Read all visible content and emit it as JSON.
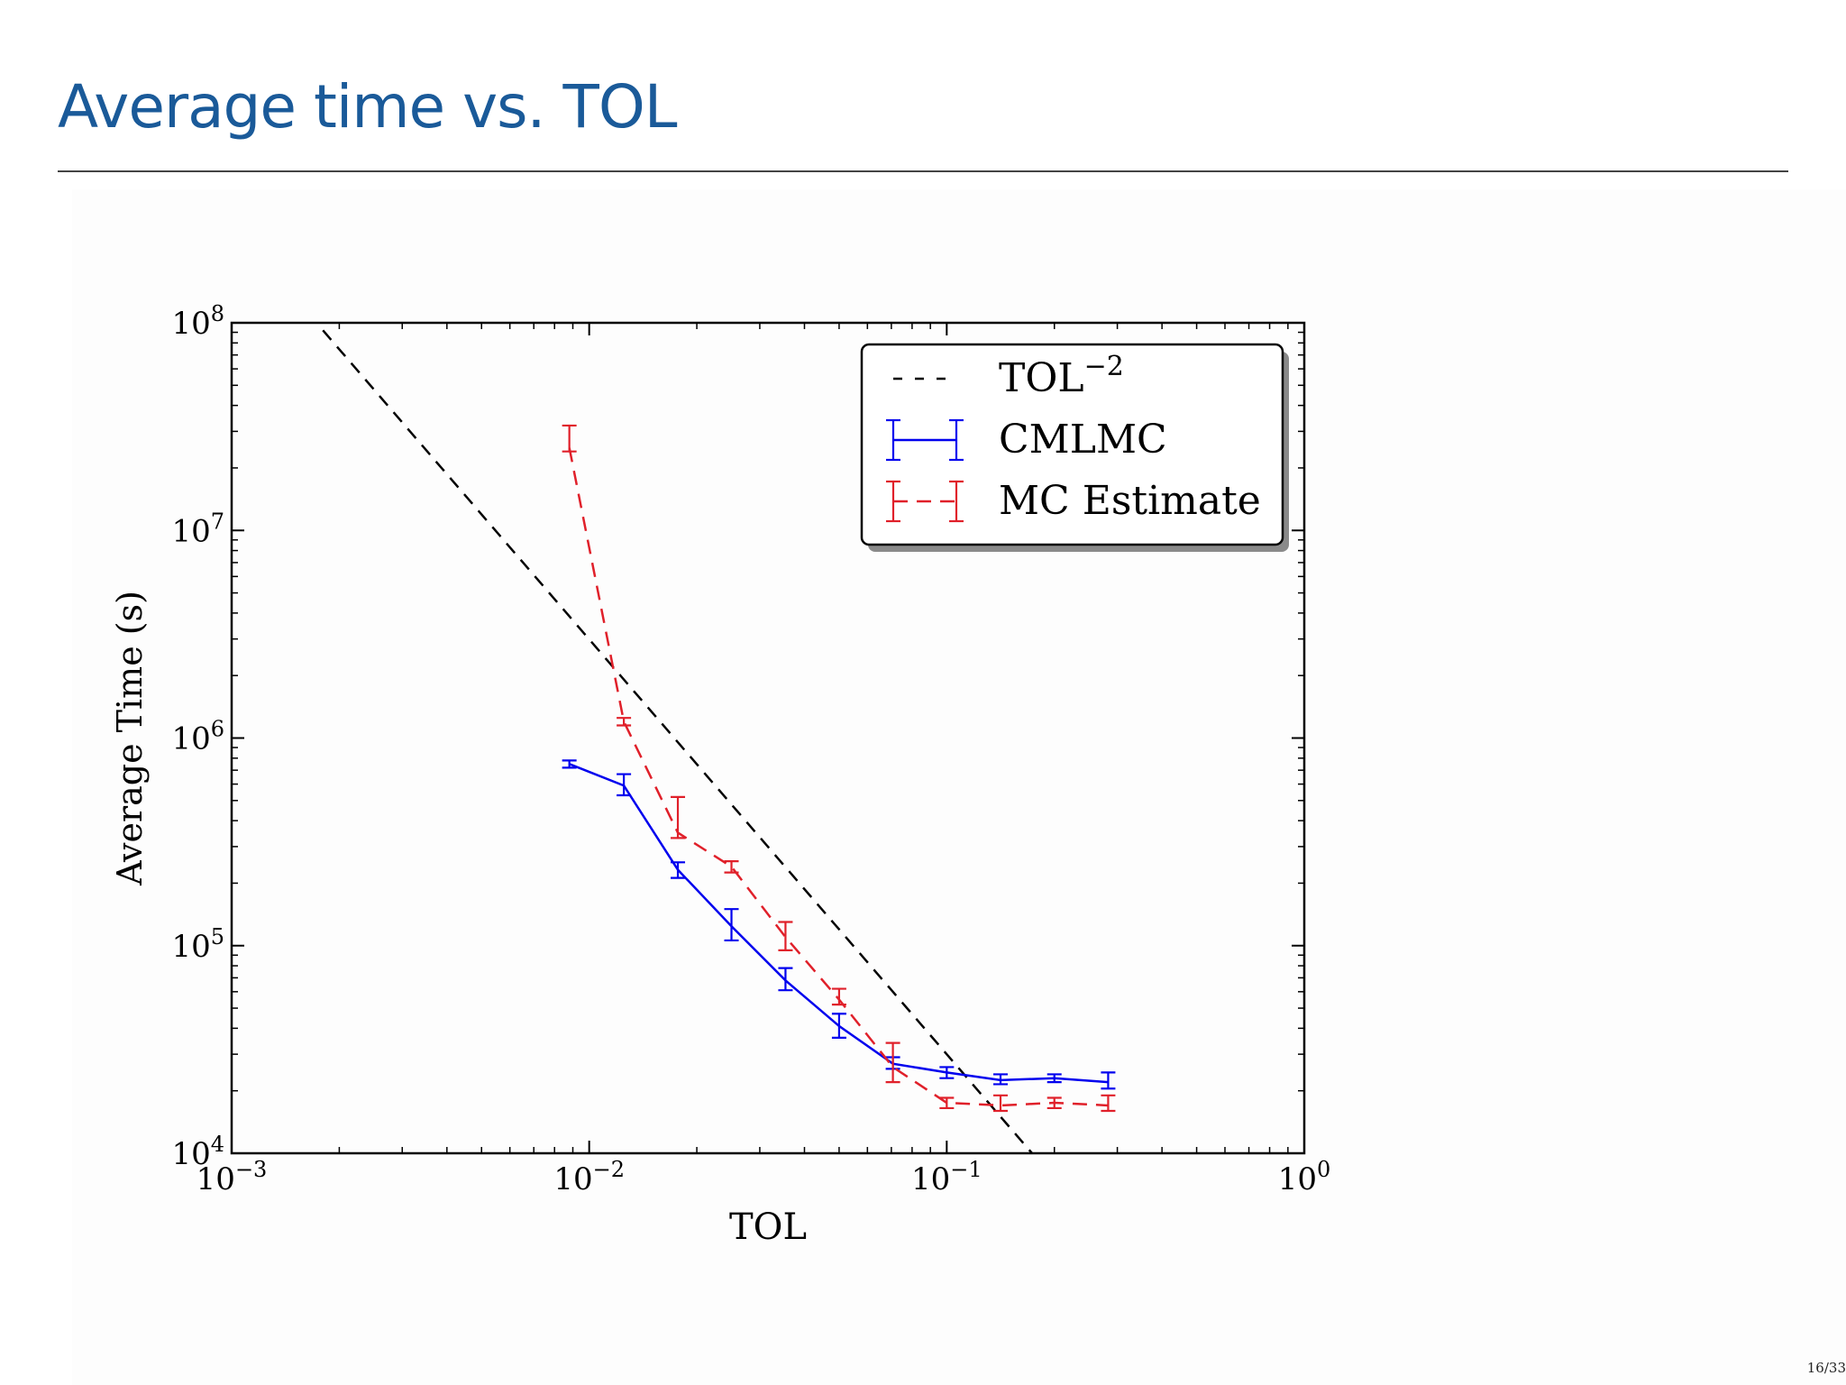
{
  "slide": {
    "title": "Average time vs. TOL",
    "page_number": "16/33"
  },
  "colors": {
    "title": "#1a5a99",
    "cmlmc": "#0000ee",
    "mc": "#e0202a",
    "reference": "#000000"
  },
  "chart_data": {
    "type": "line",
    "xscale": "log",
    "yscale": "log",
    "xlim": [
      0.001,
      1
    ],
    "ylim": [
      10000,
      100000000
    ],
    "x_ticks": [
      {
        "value": 0.001,
        "base": "10",
        "exp": "−3"
      },
      {
        "value": 0.01,
        "base": "10",
        "exp": "−2"
      },
      {
        "value": 0.1,
        "base": "10",
        "exp": "−1"
      },
      {
        "value": 1,
        "base": "10",
        "exp": "0"
      }
    ],
    "y_ticks": [
      {
        "value": 10000,
        "base": "10",
        "exp": "4"
      },
      {
        "value": 100000,
        "base": "10",
        "exp": "5"
      },
      {
        "value": 1000000,
        "base": "10",
        "exp": "6"
      },
      {
        "value": 10000000,
        "base": "10",
        "exp": "7"
      },
      {
        "value": 100000000,
        "base": "10",
        "exp": "8"
      }
    ],
    "xlabel": "TOL",
    "ylabel": "Average Time (s)",
    "legend_position": "top-right",
    "series": [
      {
        "name": "TOL−2",
        "label_base": "TOL",
        "label_exp": "−2",
        "style": "dashed",
        "points": [
          {
            "x": 0.0018,
            "y": 92000000
          },
          {
            "x": 0.175,
            "y": 9800
          }
        ]
      },
      {
        "name": "CMLMC",
        "style": "solid",
        "points": [
          {
            "x": 0.0088,
            "y": 750000,
            "lo": 720000,
            "hi": 780000
          },
          {
            "x": 0.0125,
            "y": 590000,
            "lo": 530000,
            "hi": 670000
          },
          {
            "x": 0.0177,
            "y": 232000,
            "lo": 212000,
            "hi": 252000
          },
          {
            "x": 0.025,
            "y": 124000,
            "lo": 106000,
            "hi": 150000
          },
          {
            "x": 0.0354,
            "y": 68000,
            "lo": 61000,
            "hi": 78000
          },
          {
            "x": 0.05,
            "y": 41000,
            "lo": 36000,
            "hi": 47000
          },
          {
            "x": 0.0707,
            "y": 27000,
            "lo": 25500,
            "hi": 29000
          },
          {
            "x": 0.1,
            "y": 24500,
            "lo": 23000,
            "hi": 26000
          },
          {
            "x": 0.1414,
            "y": 22500,
            "lo": 21500,
            "hi": 24000
          },
          {
            "x": 0.2,
            "y": 23000,
            "lo": 22000,
            "hi": 24000
          },
          {
            "x": 0.2828,
            "y": 22000,
            "lo": 20500,
            "hi": 24500
          }
        ]
      },
      {
        "name": "MC Estimate",
        "style": "dashed",
        "points": [
          {
            "x": 0.0088,
            "y": 25000000,
            "lo": 24000000,
            "hi": 32000000
          },
          {
            "x": 0.0125,
            "y": 1200000,
            "lo": 1150000,
            "hi": 1250000
          },
          {
            "x": 0.0177,
            "y": 350000,
            "lo": 330000,
            "hi": 520000
          },
          {
            "x": 0.025,
            "y": 240000,
            "lo": 225000,
            "hi": 255000
          },
          {
            "x": 0.0354,
            "y": 110000,
            "lo": 95000,
            "hi": 130000
          },
          {
            "x": 0.05,
            "y": 55000,
            "lo": 52000,
            "hi": 62000
          },
          {
            "x": 0.0707,
            "y": 26000,
            "lo": 22000,
            "hi": 34000
          },
          {
            "x": 0.1,
            "y": 17500,
            "lo": 16500,
            "hi": 18500
          },
          {
            "x": 0.1414,
            "y": 17000,
            "lo": 16000,
            "hi": 19000
          },
          {
            "x": 0.2,
            "y": 17500,
            "lo": 16500,
            "hi": 18500
          },
          {
            "x": 0.2828,
            "y": 17000,
            "lo": 16000,
            "hi": 19000
          }
        ]
      }
    ]
  }
}
